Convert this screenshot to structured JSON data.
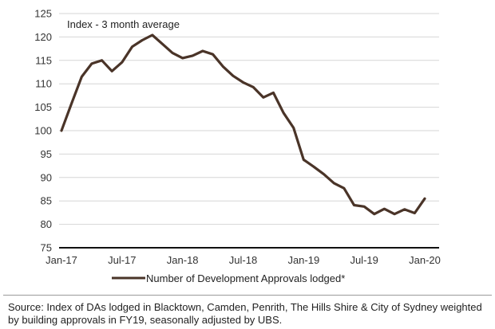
{
  "chart_data": {
    "type": "line",
    "annotation": "Index - 3 month average",
    "yticks": [
      "125",
      "120",
      "115",
      "110",
      "105",
      "100",
      "95",
      "90",
      "85",
      "80",
      "75"
    ],
    "ylim": [
      75,
      125
    ],
    "ystep": 5,
    "xticks": [
      {
        "label": "Jan-17",
        "x": 0
      },
      {
        "label": "Jul-17",
        "x": 6
      },
      {
        "label": "Jan-18",
        "x": 12
      },
      {
        "label": "Jul-18",
        "x": 18
      },
      {
        "label": "Jan-19",
        "x": 24
      },
      {
        "label": "Jul-19",
        "x": 30
      },
      {
        "label": "Jan-20",
        "x": 36
      }
    ],
    "grid": true,
    "legend_position": "bottom-center",
    "series": [
      {
        "name": "Number of Development Approvals lodged*",
        "color": "#4a3428",
        "x": [
          "Jan-17",
          "Feb-17",
          "Mar-17",
          "Apr-17",
          "May-17",
          "Jun-17",
          "Jul-17",
          "Aug-17",
          "Sep-17",
          "Oct-17",
          "Nov-17",
          "Dec-17",
          "Jan-18",
          "Feb-18",
          "Mar-18",
          "Apr-18",
          "May-18",
          "Jun-18",
          "Jul-18",
          "Aug-18",
          "Sep-18",
          "Oct-18",
          "Nov-18",
          "Dec-18",
          "Jan-19",
          "Feb-19",
          "Mar-19",
          "Apr-19",
          "May-19",
          "Jun-19",
          "Jul-19",
          "Aug-19",
          "Sep-19",
          "Oct-19",
          "Nov-19",
          "Dec-19",
          "Jan-20"
        ],
        "values": [
          100.0,
          105.8,
          111.5,
          114.3,
          115.0,
          112.7,
          114.6,
          117.9,
          119.3,
          120.4,
          118.5,
          116.6,
          115.5,
          116.0,
          117.0,
          116.3,
          113.7,
          111.7,
          110.3,
          109.3,
          107.1,
          108.1,
          103.8,
          100.6,
          93.8,
          92.3,
          90.7,
          88.8,
          87.7,
          84.1,
          83.8,
          82.2,
          83.3,
          82.2,
          83.2,
          82.4,
          85.5
        ]
      }
    ],
    "legend_label": "Number of Development Approvals lodged*"
  },
  "source": "Source: Index of DAs lodged in Blacktown, Camden, Penrith, The Hills Shire & City of Sydney weighted by building approvals in FY19, seasonally adjusted by UBS."
}
